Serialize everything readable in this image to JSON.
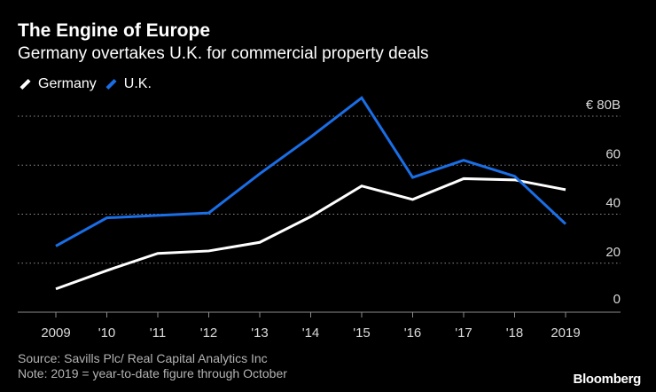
{
  "title": "The Engine of Europe",
  "subtitle": "Germany overtakes U.K. for commercial property deals",
  "legend": [
    {
      "label": "Germany",
      "color": "#ffffff"
    },
    {
      "label": "U.K.",
      "color": "#1a6ee6"
    }
  ],
  "source_lines": [
    "Source: Savills Plc/ Real Capital Analytics Inc",
    "Note: 2019 = year-to-date figure through October"
  ],
  "brand": "Bloomberg",
  "chart_data": {
    "type": "line",
    "title": "The Engine of Europe",
    "subtitle": "Germany overtakes U.K. for commercial property deals",
    "xlabel": "",
    "ylabel": "",
    "categories": [
      "2009",
      "'10",
      "'11",
      "'12",
      "'13",
      "'14",
      "'15",
      "'16",
      "'17",
      "'18",
      "2019"
    ],
    "y_tick_labels": [
      "0",
      "20",
      "40",
      "60",
      "€ 80B"
    ],
    "y_ticks": [
      0,
      20,
      40,
      60,
      80
    ],
    "ylim": [
      0,
      80
    ],
    "grid": true,
    "legend_position": "top-left",
    "series": [
      {
        "name": "Germany",
        "color": "#ffffff",
        "values": [
          9.5,
          17,
          24,
          25,
          28.5,
          39,
          51.5,
          46,
          54.5,
          54,
          50
        ]
      },
      {
        "name": "U.K.",
        "color": "#1a6ee6",
        "values": [
          27,
          38.5,
          39.5,
          40.5,
          56.5,
          71.5,
          87.5,
          55,
          62,
          55.5,
          36
        ]
      }
    ]
  }
}
